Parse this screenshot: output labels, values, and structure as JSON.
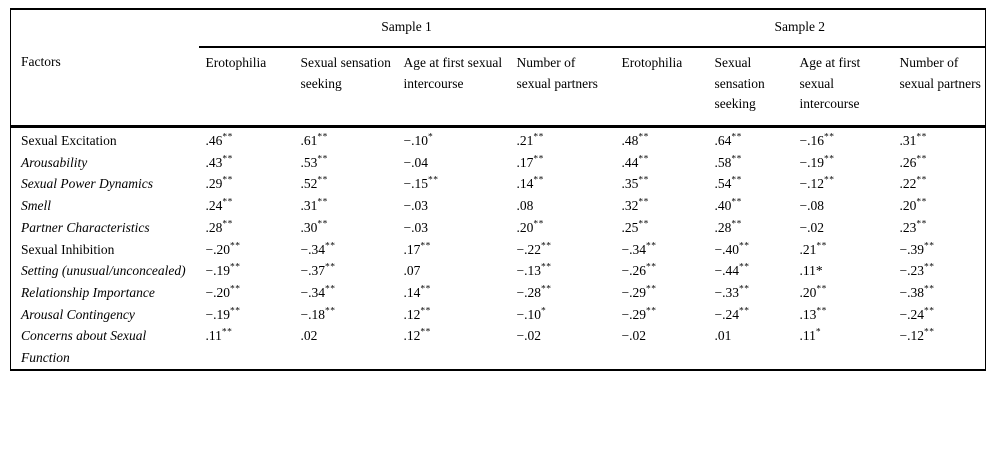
{
  "table": {
    "spanners": [
      {
        "label": "Sample 1"
      },
      {
        "label": "Sample 2"
      }
    ],
    "factors_header": "Factors",
    "columns": [
      "Erotophilia",
      "Sexual sensation seeking",
      "Age at first sexual intercourse",
      "Number of sexual partners",
      "Erotophilia",
      "Sexual sensation seeking",
      "Age at first sexual intercourse",
      "Number of sexual partners"
    ],
    "rows": [
      {
        "label": "Sexual Excitation",
        "italic": false,
        "cells": [
          [
            ".46",
            "**"
          ],
          [
            ".61",
            "**"
          ],
          [
            "−.10",
            "*"
          ],
          [
            ".21",
            "**"
          ],
          [
            ".48",
            "**"
          ],
          [
            ".64",
            "**"
          ],
          [
            "−.16",
            "**"
          ],
          [
            ".31",
            "**"
          ]
        ]
      },
      {
        "label": "Arousability",
        "italic": true,
        "cells": [
          [
            ".43",
            "**"
          ],
          [
            ".53",
            "**"
          ],
          [
            "−.04",
            ""
          ],
          [
            ".17",
            "**"
          ],
          [
            ".44",
            "**"
          ],
          [
            ".58",
            "**"
          ],
          [
            "−.19",
            "**"
          ],
          [
            ".26",
            "**"
          ]
        ]
      },
      {
        "label": "Sexual Power Dynamics",
        "italic": true,
        "cells": [
          [
            ".29",
            "**"
          ],
          [
            ".52",
            "**"
          ],
          [
            "−.15",
            "**"
          ],
          [
            ".14",
            "**"
          ],
          [
            ".35",
            "**"
          ],
          [
            ".54",
            "**"
          ],
          [
            "−.12",
            "**"
          ],
          [
            ".22",
            "**"
          ]
        ]
      },
      {
        "label": "Smell",
        "italic": true,
        "cells": [
          [
            ".24",
            "**"
          ],
          [
            ".31",
            "**"
          ],
          [
            "−.03",
            ""
          ],
          [
            ".08",
            ""
          ],
          [
            ".32",
            "**"
          ],
          [
            ".40",
            "**"
          ],
          [
            "−.08",
            ""
          ],
          [
            ".20",
            "**"
          ]
        ]
      },
      {
        "label": "Partner Characteristics",
        "italic": true,
        "cells": [
          [
            ".28",
            "**"
          ],
          [
            ".30",
            "**"
          ],
          [
            "−.03",
            ""
          ],
          [
            ".20",
            "**"
          ],
          [
            ".25",
            "**"
          ],
          [
            ".28",
            "**"
          ],
          [
            "−.02",
            ""
          ],
          [
            ".23",
            "**"
          ]
        ]
      },
      {
        "label": "Sexual Inhibition",
        "italic": false,
        "cells": [
          [
            "−.20",
            "**"
          ],
          [
            "−.34",
            "**"
          ],
          [
            ".17",
            "**"
          ],
          [
            "−.22",
            "**"
          ],
          [
            "−.34",
            "**"
          ],
          [
            "−.40",
            "**"
          ],
          [
            ".21",
            "**"
          ],
          [
            "−.39",
            "**"
          ]
        ]
      },
      {
        "label": "Setting (unusual/unconcealed)",
        "italic": true,
        "cells": [
          [
            "−.19",
            "**"
          ],
          [
            "−.37",
            "**"
          ],
          [
            ".07",
            ""
          ],
          [
            "−.13",
            "**"
          ],
          [
            "−.26",
            "**"
          ],
          [
            "−.44",
            "**"
          ],
          [
            ".11*",
            ""
          ],
          [
            "−.23",
            "**"
          ]
        ]
      },
      {
        "label": "Relationship Importance",
        "italic": true,
        "cells": [
          [
            "−.20",
            "**"
          ],
          [
            "−.34",
            "**"
          ],
          [
            ".14",
            "**"
          ],
          [
            "−.28",
            "**"
          ],
          [
            "−.29",
            "**"
          ],
          [
            "−.33",
            "**"
          ],
          [
            ".20",
            "**"
          ],
          [
            "−.38",
            "**"
          ]
        ]
      },
      {
        "label": "Arousal Contingency",
        "italic": true,
        "cells": [
          [
            "−.19",
            "**"
          ],
          [
            "−.18",
            "**"
          ],
          [
            ".12",
            "**"
          ],
          [
            "−.10",
            "*"
          ],
          [
            "−.29",
            "**"
          ],
          [
            "−.24",
            "**"
          ],
          [
            ".13",
            "**"
          ],
          [
            "−.24",
            "**"
          ]
        ]
      },
      {
        "label": "Concerns about Sexual Function",
        "italic": true,
        "cells": [
          [
            ".11",
            "**"
          ],
          [
            ".02",
            ""
          ],
          [
            ".12",
            "**"
          ],
          [
            "−.02",
            ""
          ],
          [
            "−.02",
            ""
          ],
          [
            ".01",
            ""
          ],
          [
            ".11",
            "*"
          ],
          [
            "−.12",
            "**"
          ]
        ]
      }
    ]
  }
}
